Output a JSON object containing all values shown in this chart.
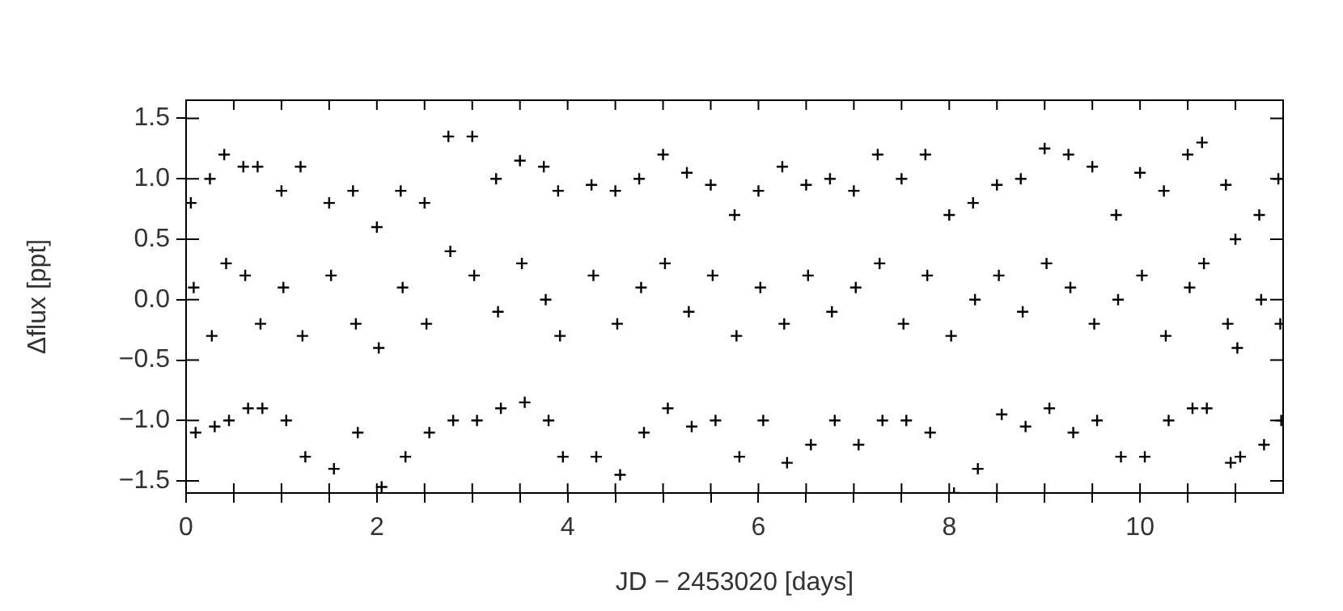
{
  "chart_data": {
    "type": "scatter",
    "xlabel": "JD − 2453020 [days]",
    "ylabel": "Δflux [ppt]",
    "marker": "cross",
    "grid": false,
    "legend": false,
    "xlim": [
      0,
      11.5
    ],
    "ylim": [
      -1.6,
      1.65
    ],
    "xticks": [
      0,
      {
        "value": 0.5,
        "label": null
      },
      {
        "value": 1,
        "label": null
      },
      {
        "value": 1.5,
        "label": null
      },
      2,
      {
        "value": 2.5,
        "label": null
      },
      {
        "value": 3,
        "label": null
      },
      {
        "value": 3.5,
        "label": null
      },
      4,
      {
        "value": 4.5,
        "label": null
      },
      {
        "value": 5,
        "label": null
      },
      {
        "value": 5.5,
        "label": null
      },
      6,
      {
        "value": 6.5,
        "label": null
      },
      {
        "value": 7,
        "label": null
      },
      {
        "value": 7.5,
        "label": null
      },
      8,
      {
        "value": 8.5,
        "label": null
      },
      {
        "value": 9,
        "label": null
      },
      {
        "value": 9.5,
        "label": null
      },
      10,
      {
        "value": 10.5,
        "label": null
      },
      {
        "value": 11,
        "label": null
      }
    ],
    "yticks": [
      {
        "value": -1.5,
        "label": "−1.5"
      },
      {
        "value": -1,
        "label": "−1.0"
      },
      {
        "value": -0.5,
        "label": "−0.5"
      },
      {
        "value": 0,
        "label": "0.0"
      },
      {
        "value": 0.5,
        "label": "0.5"
      },
      {
        "value": 1,
        "label": "1.0"
      },
      {
        "value": 1.5,
        "label": "1.5"
      }
    ],
    "series": [
      {
        "color": "#000000",
        "x": [
          0.05,
          0.08,
          0.1,
          0.25,
          0.27,
          0.3,
          0.4,
          0.42,
          0.45,
          0.6,
          0.62,
          0.65,
          0.75,
          0.78,
          0.8,
          1.0,
          1.02,
          1.05,
          1.2,
          1.22,
          1.25,
          1.5,
          1.52,
          1.55,
          1.75,
          1.78,
          1.8,
          2.0,
          2.02,
          2.05,
          2.25,
          2.27,
          2.3,
          2.5,
          2.52,
          2.55,
          2.75,
          2.77,
          2.8,
          3.0,
          3.02,
          3.05,
          3.25,
          3.27,
          3.3,
          3.5,
          3.52,
          3.55,
          3.75,
          3.77,
          3.8,
          3.9,
          3.92,
          3.95,
          4.25,
          4.27,
          4.3,
          4.5,
          4.52,
          4.55,
          4.75,
          4.77,
          4.8,
          5.0,
          5.02,
          5.05,
          5.25,
          5.27,
          5.3,
          5.5,
          5.52,
          5.55,
          5.75,
          5.77,
          5.8,
          6.0,
          6.02,
          6.05,
          6.25,
          6.27,
          6.3,
          6.5,
          6.52,
          6.55,
          6.75,
          6.77,
          6.8,
          7.0,
          7.02,
          7.05,
          7.25,
          7.27,
          7.3,
          7.5,
          7.52,
          7.55,
          7.75,
          7.77,
          7.8,
          8.0,
          8.02,
          8.05,
          8.25,
          8.27,
          8.3,
          8.5,
          8.52,
          8.55,
          8.75,
          8.77,
          8.8,
          9.0,
          9.02,
          9.05,
          9.25,
          9.27,
          9.3,
          9.5,
          9.52,
          9.55,
          9.75,
          9.77,
          9.8,
          10.0,
          10.02,
          10.05,
          10.25,
          10.27,
          10.3,
          10.5,
          10.52,
          10.55,
          10.65,
          10.67,
          10.7,
          10.9,
          10.92,
          10.95,
          11.0,
          11.02,
          11.05,
          11.25,
          11.27,
          11.3,
          11.45,
          11.47,
          11.48
        ],
        "values": [
          0.8,
          0.1,
          -1.1,
          1.0,
          -0.3,
          -1.05,
          1.2,
          0.3,
          -1.0,
          1.1,
          0.2,
          -0.9,
          1.1,
          -0.2,
          -0.9,
          0.9,
          0.1,
          -1.0,
          1.1,
          -0.3,
          -1.3,
          0.8,
          0.2,
          -1.4,
          0.9,
          -0.2,
          -1.1,
          0.6,
          -0.4,
          -1.55,
          0.9,
          0.1,
          -1.3,
          0.8,
          -0.2,
          -1.1,
          1.35,
          0.4,
          -1.0,
          1.35,
          0.2,
          -1.0,
          1.0,
          -0.1,
          -0.9,
          1.15,
          0.3,
          -0.85,
          1.1,
          0.0,
          -1.0,
          0.9,
          -0.3,
          -1.3,
          0.95,
          0.2,
          -1.3,
          0.9,
          -0.2,
          -1.45,
          1.0,
          0.1,
          -1.1,
          1.2,
          0.3,
          -0.9,
          1.05,
          -0.1,
          -1.05,
          0.95,
          0.2,
          -1.0,
          0.7,
          -0.3,
          -1.3,
          0.9,
          0.1,
          -1.0,
          1.1,
          -0.2,
          -1.35,
          0.95,
          0.2,
          -1.2,
          1.0,
          -0.1,
          -1.0,
          0.9,
          0.1,
          -1.2,
          1.2,
          0.3,
          -1.0,
          1.0,
          -0.2,
          -1.0,
          1.2,
          0.2,
          -1.1,
          0.7,
          -0.3,
          -1.6,
          0.8,
          0.0,
          -1.4,
          0.95,
          0.2,
          -0.95,
          1.0,
          -0.1,
          -1.05,
          1.25,
          0.3,
          -0.9,
          1.2,
          0.1,
          -1.1,
          1.1,
          -0.2,
          -1.0,
          0.7,
          0.0,
          -1.3,
          1.05,
          0.2,
          -1.3,
          0.9,
          -0.3,
          -1.0,
          1.2,
          0.1,
          -0.9,
          1.3,
          0.3,
          -0.9,
          0.95,
          -0.2,
          -1.35,
          0.5,
          -0.4,
          -1.3,
          0.7,
          0.0,
          -1.2,
          1.0,
          -0.2,
          -1.0
        ]
      }
    ]
  }
}
